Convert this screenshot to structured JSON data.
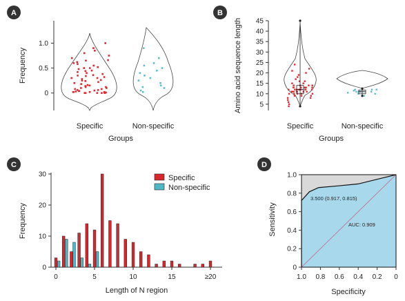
{
  "panels": [
    {
      "letter": "A",
      "chart_data": {
        "type": "violin",
        "categories": [
          "Specific",
          "Non-specific"
        ],
        "xlabel": "Groups",
        "ylabel": "Frequency",
        "ylim": [
          -0.35,
          1.45
        ],
        "yticks": [
          "0",
          "0.5",
          "1.0"
        ],
        "series": [
          {
            "name": "Specific",
            "color": "#e0282e",
            "points": [
              0.0,
              0.01,
              0.02,
              0.0,
              0.01,
              0.03,
              0.0,
              0.02,
              0.05,
              0.04,
              0.08,
              0.1,
              0.12,
              0.06,
              0.15,
              0.18,
              0.2,
              0.22,
              0.25,
              0.28,
              0.3,
              0.32,
              0.35,
              0.38,
              0.4,
              0.42,
              0.45,
              0.5,
              0.52,
              0.55,
              0.6,
              0.62,
              0.65,
              0.7,
              0.75,
              0.8,
              0.85,
              0.9,
              1.0,
              0.1,
              0.14,
              0.16,
              0.24,
              0.26,
              0.34,
              0.44,
              0.48,
              0.58,
              0.0,
              0.02,
              0.04,
              0.06,
              0.08,
              0.12,
              0.02,
              0.0,
              0.3,
              0.36,
              0.5,
              0.66
            ]
          },
          {
            "name": "Non-specific",
            "color": "#5bbccc",
            "points": [
              0.05,
              0.1,
              0.15,
              0.25,
              0.35,
              0.4,
              0.5,
              0.55,
              0.6,
              0.7,
              0.9,
              0.3,
              0.12,
              0.45,
              0.02,
              0.2
            ]
          }
        ]
      }
    },
    {
      "letter": "B",
      "chart_data": {
        "type": "violin",
        "categories": [
          "Specific",
          "Non-specific"
        ],
        "xlabel": "Groups",
        "ylabel": "Amino acid sequence length",
        "ylim": [
          2,
          45
        ],
        "yticks": [
          "5",
          "10",
          "15",
          "20",
          "25",
          "30",
          "35",
          "40",
          "45"
        ],
        "series": [
          {
            "name": "Specific",
            "color": "#e0282e",
            "box": {
              "min": 4,
              "q1": 10,
              "median": 12,
              "q3": 14,
              "max": 45
            },
            "points": [
              4,
              5,
              6,
              7,
              8,
              9,
              9,
              10,
              10,
              10,
              11,
              11,
              11,
              11,
              12,
              12,
              12,
              12,
              12,
              13,
              13,
              13,
              13,
              14,
              14,
              14,
              15,
              15,
              16,
              16,
              17,
              18,
              19,
              20,
              21,
              22,
              24,
              11,
              12,
              10,
              13,
              11,
              12,
              14,
              9,
              8,
              13,
              12,
              11,
              10
            ]
          },
          {
            "name": "Non-specific",
            "color": "#5bbccc",
            "box": {
              "min": 9,
              "q1": 10,
              "median": 11,
              "q3": 11.8,
              "max": 12.5
            },
            "points": [
              9,
              10,
              10,
              11,
              11,
              11,
              12,
              12,
              11,
              10.5,
              11.5,
              12
            ]
          }
        ]
      }
    },
    {
      "letter": "C",
      "chart_data": {
        "type": "bar",
        "categories": [
          "0",
          "1",
          "2",
          "3",
          "4",
          "5",
          "6",
          "7",
          "8",
          "9",
          "10",
          "11",
          "12",
          "13",
          "14",
          "15",
          "16",
          "17",
          "18",
          "19",
          "≥20"
        ],
        "xticks": [
          "0",
          "5",
          "10",
          "15",
          "≥20"
        ],
        "xlabel": "Length of N region",
        "ylabel": "Frequency",
        "ylim": [
          0,
          30
        ],
        "yticks": [
          "0",
          "10",
          "20",
          "30"
        ],
        "legend": "top-right",
        "series": [
          {
            "name": "Specific",
            "color": "#d9252c",
            "values": [
              3,
              10,
              5,
              11,
              14,
              12,
              30,
              15,
              14,
              9,
              8,
              5,
              4,
              1,
              2,
              2,
              1,
              0,
              1,
              1,
              2
            ]
          },
          {
            "name": "Non-specific",
            "color": "#4fb8c4",
            "values": [
              2,
              9,
              8,
              3,
              1,
              5,
              0,
              0,
              0,
              0,
              0,
              0,
              0,
              0,
              0,
              0,
              0,
              0,
              0,
              0,
              0
            ]
          }
        ]
      }
    },
    {
      "letter": "D",
      "chart_data": {
        "type": "line",
        "xlabel": "Specificity",
        "ylabel": "Sensitivity",
        "xlim": [
          1.0,
          0
        ],
        "ylim": [
          0,
          1.0
        ],
        "xticks": [
          "1.0",
          "0.8",
          "0.6",
          "0.4",
          "0.2",
          "0"
        ],
        "yticks": [
          "0",
          "0.2",
          "0.4",
          "0.6",
          "0.8",
          "1.0"
        ],
        "series": [
          {
            "name": "ROC",
            "x": [
              1.0,
              1.0,
              0.917,
              0.82,
              0.6,
              0.4,
              0.2,
              0.0
            ],
            "y": [
              0.0,
              0.72,
              0.815,
              0.86,
              0.88,
              0.9,
              0.95,
              1.0
            ]
          }
        ],
        "annotations": [
          "3.500 (0.917, 0.815)",
          "AUC: 0.909"
        ]
      }
    }
  ]
}
